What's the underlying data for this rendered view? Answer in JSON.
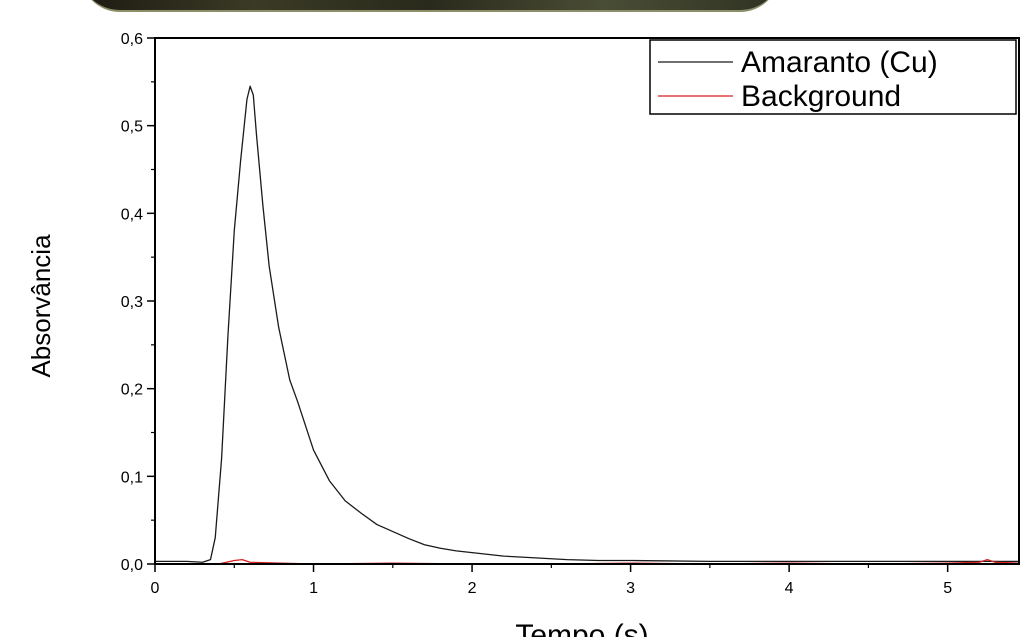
{
  "chart_data": {
    "type": "line",
    "xlabel": "Tempo (s)",
    "ylabel": "Absorvância",
    "xlim": [
      0,
      5.45
    ],
    "ylim": [
      0,
      0.6
    ],
    "xticks": [
      "0",
      "1",
      "2",
      "3",
      "4",
      "5"
    ],
    "yticks": [
      "0,0",
      "0,1",
      "0,2",
      "0,3",
      "0,4",
      "0,5",
      "0,6"
    ],
    "legend_position": "top-right",
    "grid": false,
    "series": [
      {
        "name": "Amaranto (Cu)",
        "color": "#1a1a1a",
        "x": [
          0,
          0.2,
          0.3,
          0.35,
          0.38,
          0.42,
          0.46,
          0.5,
          0.54,
          0.58,
          0.6,
          0.62,
          0.64,
          0.68,
          0.72,
          0.78,
          0.85,
          0.9,
          1.0,
          1.1,
          1.2,
          1.3,
          1.4,
          1.5,
          1.6,
          1.7,
          1.8,
          1.9,
          2.0,
          2.2,
          2.4,
          2.6,
          2.8,
          3.0,
          3.5,
          4.0,
          4.5,
          5.0,
          5.45
        ],
        "y": [
          0.003,
          0.003,
          0.002,
          0.005,
          0.03,
          0.12,
          0.26,
          0.38,
          0.46,
          0.53,
          0.545,
          0.535,
          0.49,
          0.41,
          0.34,
          0.27,
          0.21,
          0.185,
          0.13,
          0.095,
          0.072,
          0.058,
          0.045,
          0.037,
          0.029,
          0.022,
          0.018,
          0.015,
          0.013,
          0.009,
          0.007,
          0.005,
          0.004,
          0.004,
          0.003,
          0.003,
          0.003,
          0.003,
          0.003
        ]
      },
      {
        "name": "Background",
        "color": "#d62020",
        "x": [
          0,
          0.4,
          0.5,
          0.55,
          0.6,
          1.0,
          1.5,
          2.0,
          2.5,
          3.0,
          3.5,
          4.0,
          4.5,
          5.0,
          5.2,
          5.25,
          5.3,
          5.45
        ],
        "y": [
          0.0,
          0.0,
          0.004,
          0.005,
          0.002,
          0.0,
          0.001,
          0.0,
          0.0,
          0.001,
          0.0,
          0.001,
          0.0,
          0.001,
          0.002,
          0.005,
          0.002,
          0.001
        ]
      }
    ]
  }
}
